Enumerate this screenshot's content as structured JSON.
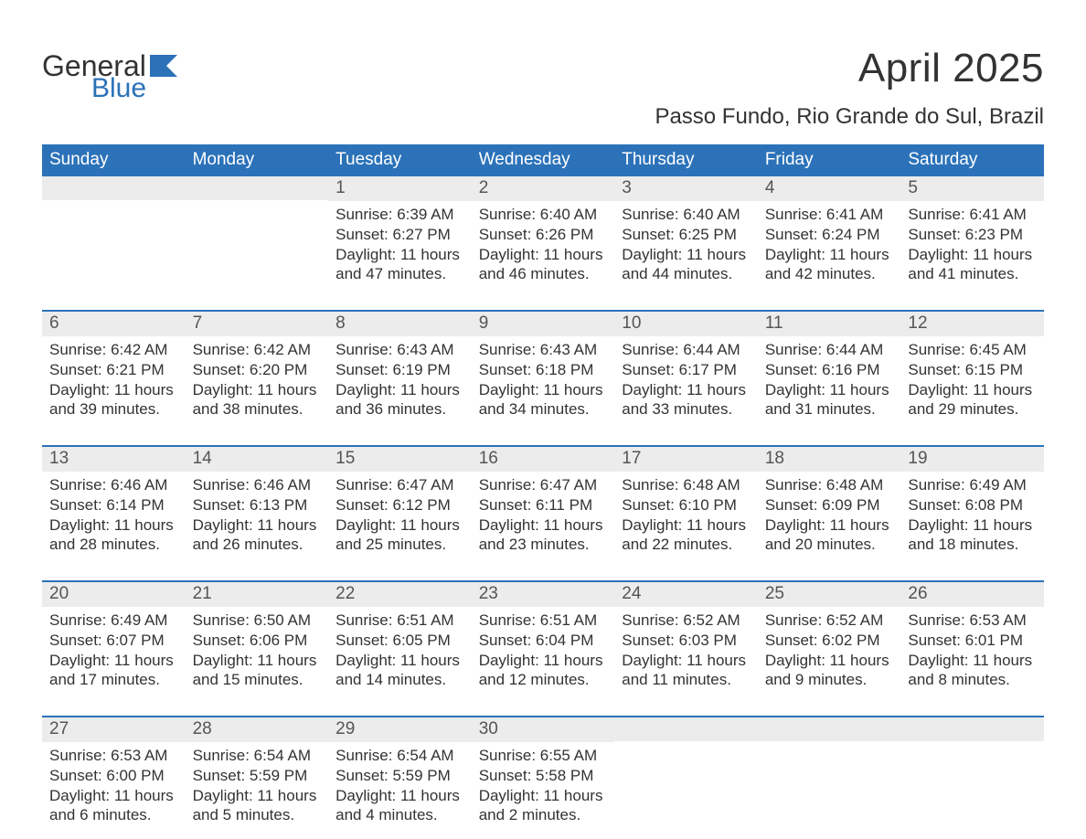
{
  "logo": {
    "general": "General",
    "blue": "Blue",
    "flag_color": "#2b72b9"
  },
  "title": "April 2025",
  "location": "Passo Fundo, Rio Grande do Sul, Brazil",
  "colors": {
    "header_bg": "#2b72b9",
    "header_text": "#ffffff",
    "daynum_bg": "#ececec",
    "text": "#333333",
    "page_bg": "#ffffff"
  },
  "layout": {
    "columns": 7,
    "rows": 5,
    "first_weekday_index": 2
  },
  "weekdays": [
    "Sunday",
    "Monday",
    "Tuesday",
    "Wednesday",
    "Thursday",
    "Friday",
    "Saturday"
  ],
  "days": [
    {
      "n": 1,
      "sunrise": "6:39 AM",
      "sunset": "6:27 PM",
      "daylight": "11 hours and 47 minutes."
    },
    {
      "n": 2,
      "sunrise": "6:40 AM",
      "sunset": "6:26 PM",
      "daylight": "11 hours and 46 minutes."
    },
    {
      "n": 3,
      "sunrise": "6:40 AM",
      "sunset": "6:25 PM",
      "daylight": "11 hours and 44 minutes."
    },
    {
      "n": 4,
      "sunrise": "6:41 AM",
      "sunset": "6:24 PM",
      "daylight": "11 hours and 42 minutes."
    },
    {
      "n": 5,
      "sunrise": "6:41 AM",
      "sunset": "6:23 PM",
      "daylight": "11 hours and 41 minutes."
    },
    {
      "n": 6,
      "sunrise": "6:42 AM",
      "sunset": "6:21 PM",
      "daylight": "11 hours and 39 minutes."
    },
    {
      "n": 7,
      "sunrise": "6:42 AM",
      "sunset": "6:20 PM",
      "daylight": "11 hours and 38 minutes."
    },
    {
      "n": 8,
      "sunrise": "6:43 AM",
      "sunset": "6:19 PM",
      "daylight": "11 hours and 36 minutes."
    },
    {
      "n": 9,
      "sunrise": "6:43 AM",
      "sunset": "6:18 PM",
      "daylight": "11 hours and 34 minutes."
    },
    {
      "n": 10,
      "sunrise": "6:44 AM",
      "sunset": "6:17 PM",
      "daylight": "11 hours and 33 minutes."
    },
    {
      "n": 11,
      "sunrise": "6:44 AM",
      "sunset": "6:16 PM",
      "daylight": "11 hours and 31 minutes."
    },
    {
      "n": 12,
      "sunrise": "6:45 AM",
      "sunset": "6:15 PM",
      "daylight": "11 hours and 29 minutes."
    },
    {
      "n": 13,
      "sunrise": "6:46 AM",
      "sunset": "6:14 PM",
      "daylight": "11 hours and 28 minutes."
    },
    {
      "n": 14,
      "sunrise": "6:46 AM",
      "sunset": "6:13 PM",
      "daylight": "11 hours and 26 minutes."
    },
    {
      "n": 15,
      "sunrise": "6:47 AM",
      "sunset": "6:12 PM",
      "daylight": "11 hours and 25 minutes."
    },
    {
      "n": 16,
      "sunrise": "6:47 AM",
      "sunset": "6:11 PM",
      "daylight": "11 hours and 23 minutes."
    },
    {
      "n": 17,
      "sunrise": "6:48 AM",
      "sunset": "6:10 PM",
      "daylight": "11 hours and 22 minutes."
    },
    {
      "n": 18,
      "sunrise": "6:48 AM",
      "sunset": "6:09 PM",
      "daylight": "11 hours and 20 minutes."
    },
    {
      "n": 19,
      "sunrise": "6:49 AM",
      "sunset": "6:08 PM",
      "daylight": "11 hours and 18 minutes."
    },
    {
      "n": 20,
      "sunrise": "6:49 AM",
      "sunset": "6:07 PM",
      "daylight": "11 hours and 17 minutes."
    },
    {
      "n": 21,
      "sunrise": "6:50 AM",
      "sunset": "6:06 PM",
      "daylight": "11 hours and 15 minutes."
    },
    {
      "n": 22,
      "sunrise": "6:51 AM",
      "sunset": "6:05 PM",
      "daylight": "11 hours and 14 minutes."
    },
    {
      "n": 23,
      "sunrise": "6:51 AM",
      "sunset": "6:04 PM",
      "daylight": "11 hours and 12 minutes."
    },
    {
      "n": 24,
      "sunrise": "6:52 AM",
      "sunset": "6:03 PM",
      "daylight": "11 hours and 11 minutes."
    },
    {
      "n": 25,
      "sunrise": "6:52 AM",
      "sunset": "6:02 PM",
      "daylight": "11 hours and 9 minutes."
    },
    {
      "n": 26,
      "sunrise": "6:53 AM",
      "sunset": "6:01 PM",
      "daylight": "11 hours and 8 minutes."
    },
    {
      "n": 27,
      "sunrise": "6:53 AM",
      "sunset": "6:00 PM",
      "daylight": "11 hours and 6 minutes."
    },
    {
      "n": 28,
      "sunrise": "6:54 AM",
      "sunset": "5:59 PM",
      "daylight": "11 hours and 5 minutes."
    },
    {
      "n": 29,
      "sunrise": "6:54 AM",
      "sunset": "5:59 PM",
      "daylight": "11 hours and 4 minutes."
    },
    {
      "n": 30,
      "sunrise": "6:55 AM",
      "sunset": "5:58 PM",
      "daylight": "11 hours and 2 minutes."
    }
  ],
  "labels": {
    "sunrise": "Sunrise:",
    "sunset": "Sunset:",
    "daylight": "Daylight:"
  }
}
